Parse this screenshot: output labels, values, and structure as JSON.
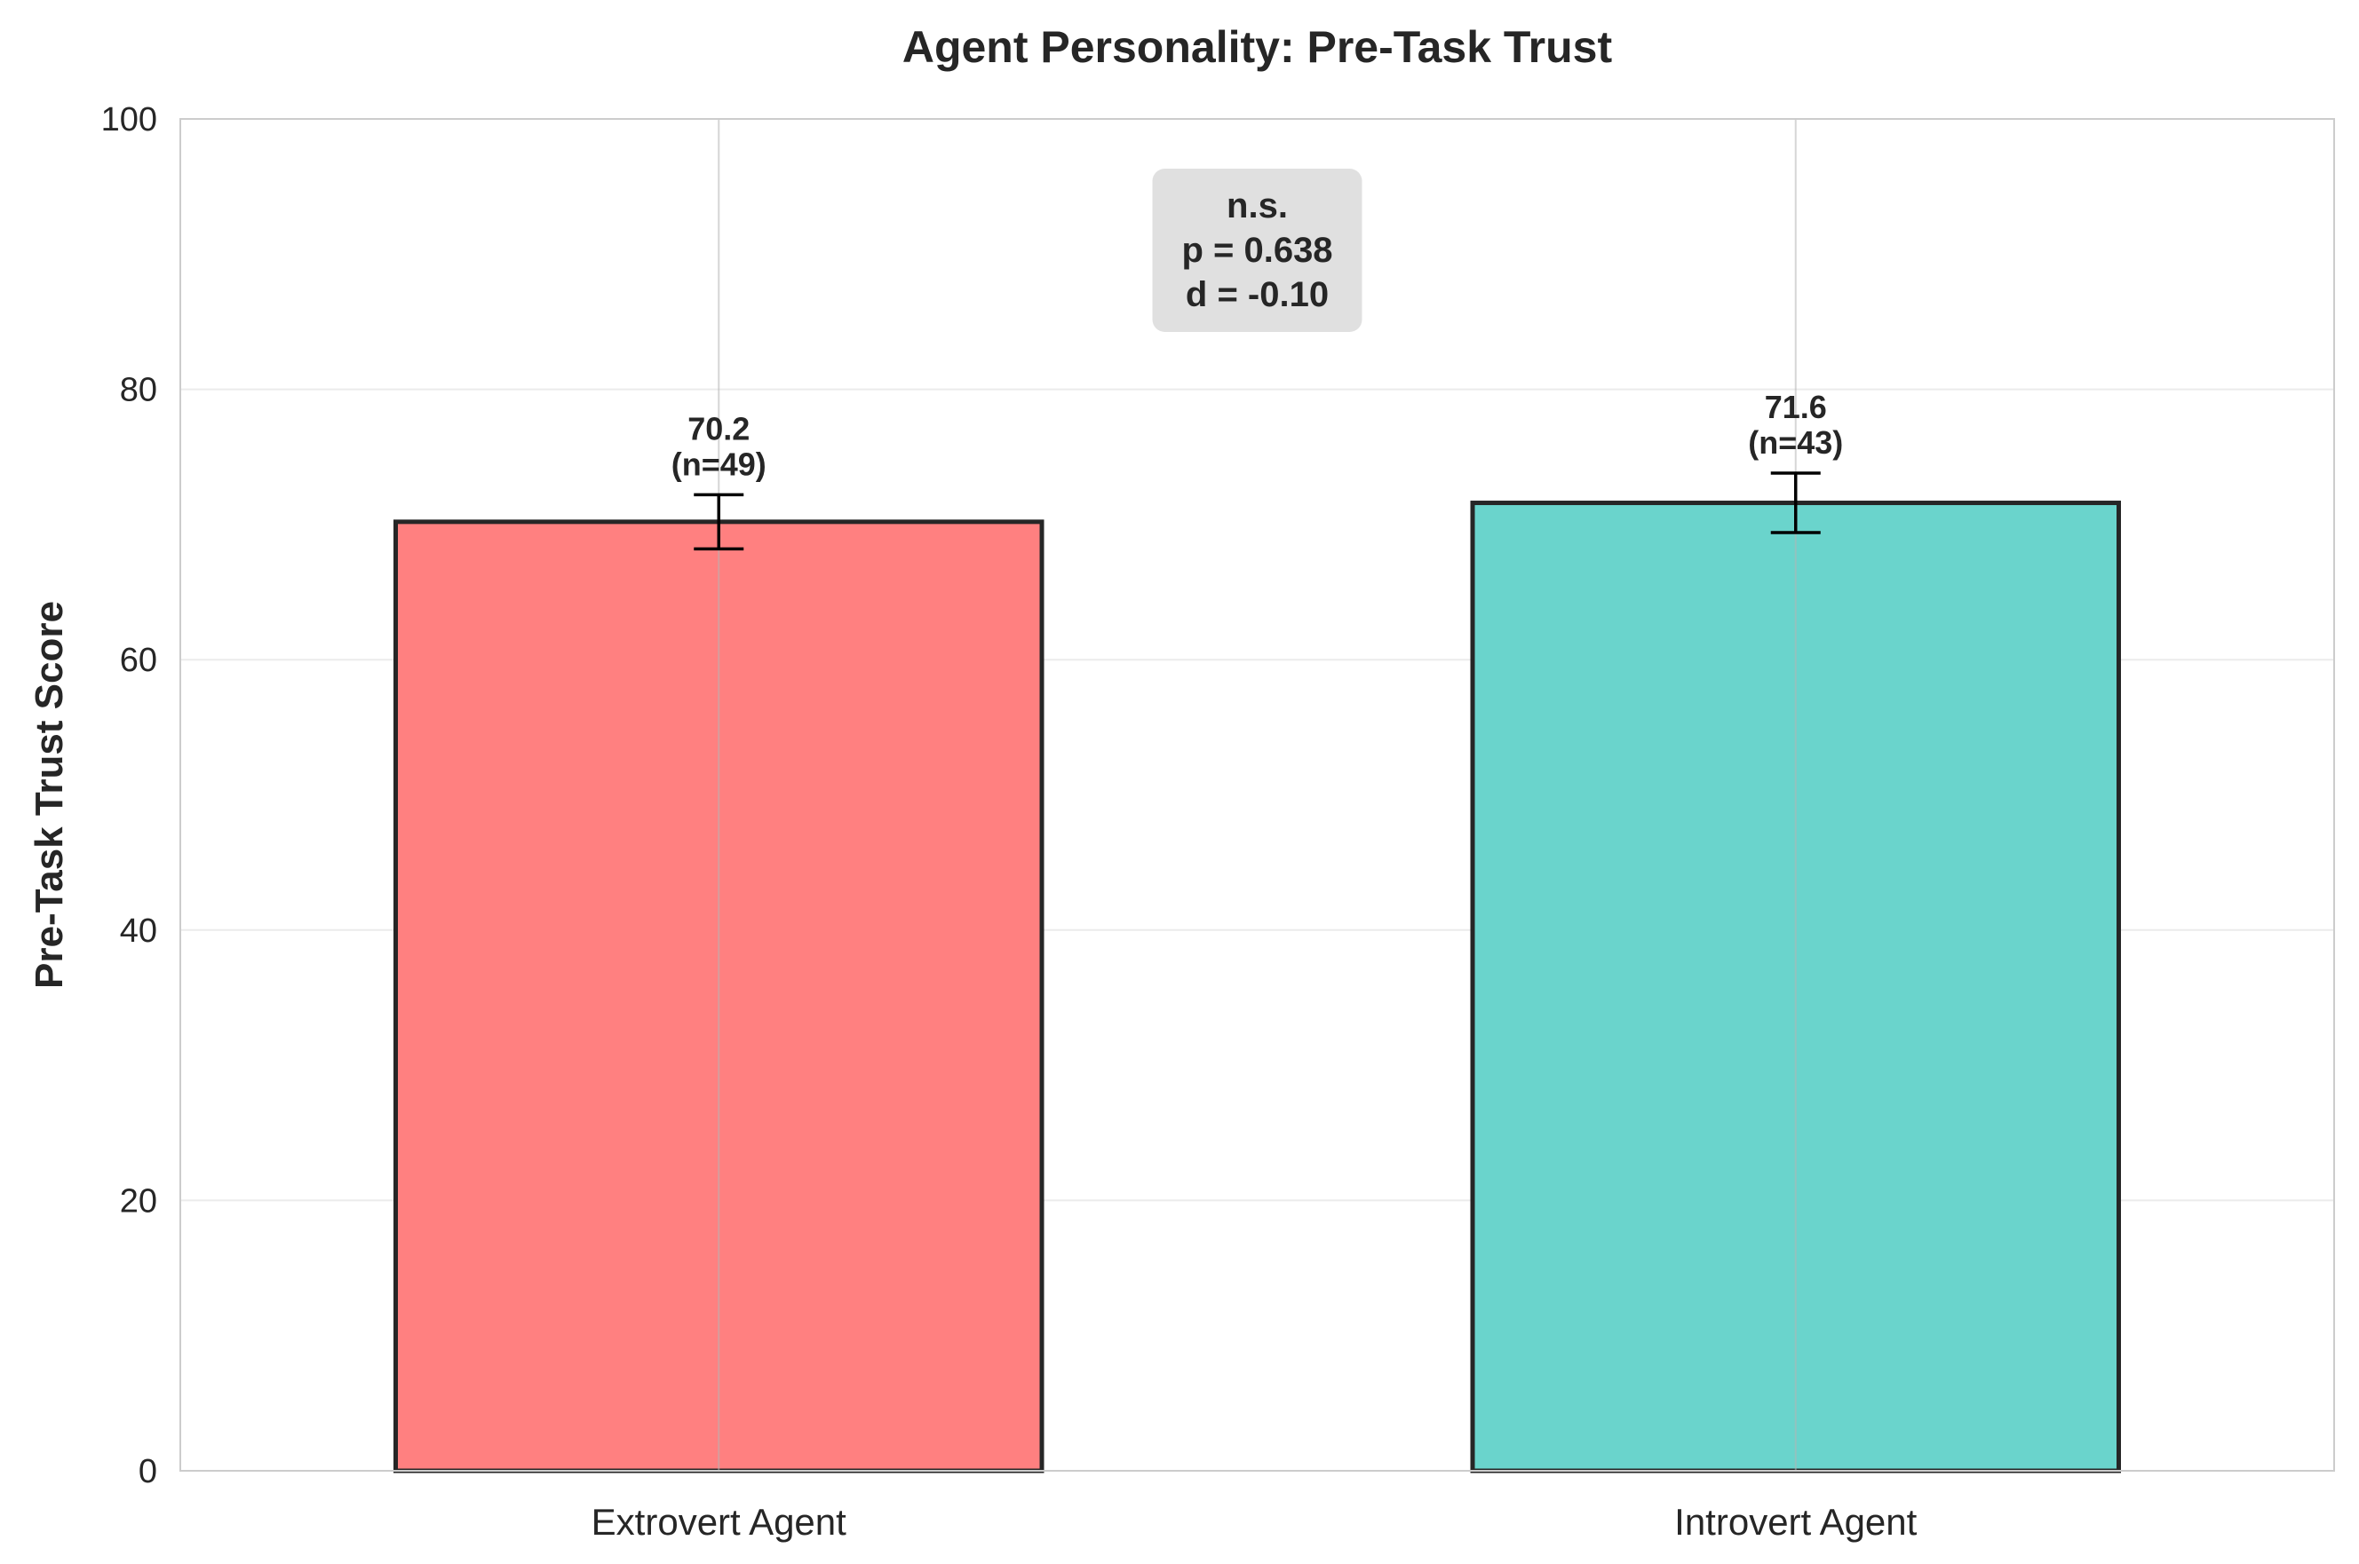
{
  "chart_data": {
    "type": "bar",
    "title": "Agent Personality: Pre-Task Trust",
    "xlabel": "",
    "ylabel": "Pre-Task Trust Score",
    "ylim": [
      0,
      100
    ],
    "yticks": [
      "0",
      "20",
      "40",
      "60",
      "80",
      "100"
    ],
    "ytick_values": [
      0,
      20,
      40,
      60,
      80,
      100
    ],
    "grid": true,
    "categories": [
      "Extrovert Agent",
      "Introvert Agent"
    ],
    "values": [
      70.2,
      71.6
    ],
    "error": [
      2.0,
      2.2
    ],
    "value_labels": [
      "70.2",
      "71.6"
    ],
    "n_labels": [
      "(n=49)",
      "(n=43)"
    ],
    "colors": [
      "#ff8080",
      "#6ad4cc"
    ],
    "edge_color": "#262626",
    "annotation": {
      "lines": [
        "n.s.",
        "p = 0.638",
        "d = -0.10"
      ],
      "background": "#e0e0e0"
    }
  }
}
